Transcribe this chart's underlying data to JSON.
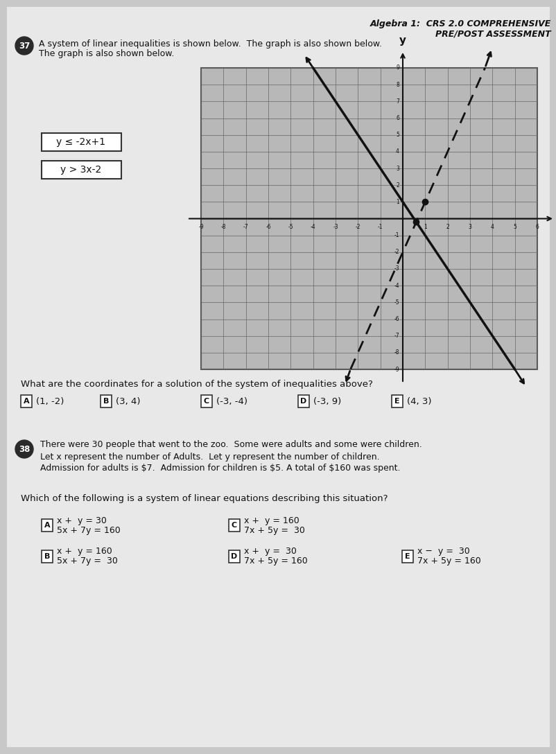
{
  "bg_color": "#c8c8c8",
  "title_line1": "Algebra 1:  CRS 2.0 COMPREHENSIVE",
  "title_line2": "PRE/POST ASSESSMENT",
  "q37_intro": "A system of linear inequalities is shown below.  The graph is also shown below.",
  "ineq1": "y ≤ -2x+1",
  "ineq2": "y > 3x-2",
  "q37_question": "What are the coordinates for a solution of the system of inequalities above?",
  "q37_answers": [
    {
      "label": "A",
      "text": "(1, -2)"
    },
    {
      "label": "B",
      "text": "(3, 4)"
    },
    {
      "label": "C",
      "text": "(-3, -4)"
    },
    {
      "label": "D",
      "text": "(-3, 9)"
    },
    {
      "label": "E",
      "text": "(4, 3)"
    }
  ],
  "q38_text_lines": [
    "There were 30 people that went to the zoo.  Some were adults and some were children.",
    "Let x represent the number of Adults.  Let y represent the number of children.",
    "Admission for adults is $7.  Admission for children is $5. A total of $160 was spent."
  ],
  "q38_question": "Which of the following is a system of linear equations describing this situation?",
  "q38_answers": [
    {
      "label": "A",
      "line1": "x +  y = 30",
      "line2": "5x + 7y = 160"
    },
    {
      "label": "B",
      "line1": "x +  y = 160",
      "line2": "5x + 7y =  30"
    },
    {
      "label": "C",
      "line1": "x +  y = 160",
      "line2": "7x + 5y =  30"
    },
    {
      "label": "D",
      "line1": "x +  y =  30",
      "line2": "7x + 5y = 160"
    },
    {
      "label": "E",
      "line1": "x −  y =  30",
      "line2": "7x + 5y = 160"
    }
  ],
  "graph_xlim": [
    -9,
    6
  ],
  "graph_ylim": [
    -9,
    9
  ],
  "line1_slope": -2,
  "line1_intercept": 1,
  "line2_slope": 3,
  "line2_intercept": -2,
  "text_color": "#1a1a1a",
  "dark_color": "#111111"
}
